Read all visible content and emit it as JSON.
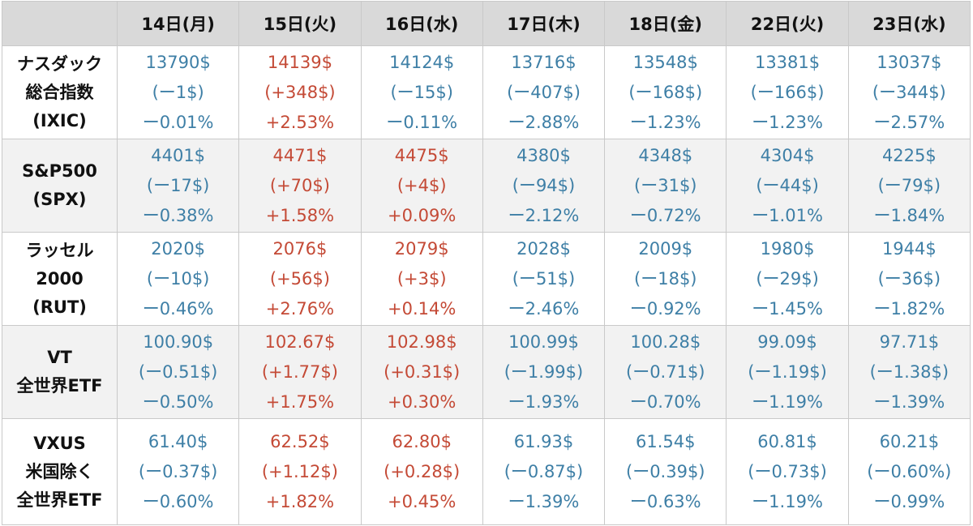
{
  "colors": {
    "negative": "#3e7fa6",
    "positive": "#c44a36",
    "header_bg": "#d9d9d9",
    "row_shade": "#f2f2f2"
  },
  "days": [
    "14日(月)",
    "15日(火)",
    "16日(水)",
    "17日(木)",
    "18日(金)",
    "22日(火)",
    "23日(水)"
  ],
  "rows": [
    {
      "label": [
        "ナスダック",
        "総合指数",
        "(IXIC)"
      ],
      "cells": [
        {
          "price": "13790$",
          "change": "(ー1$)",
          "pct": "ー0.01%",
          "dir": "neg"
        },
        {
          "price": "14139$",
          "change": "(+348$)",
          "pct": "+2.53%",
          "dir": "pos"
        },
        {
          "price": "14124$",
          "change": "(ー15$)",
          "pct": "ー0.11%",
          "dir": "neg"
        },
        {
          "price": "13716$",
          "change": "(ー407$)",
          "pct": "ー2.88%",
          "dir": "neg"
        },
        {
          "price": "13548$",
          "change": "(ー168$)",
          "pct": "ー1.23%",
          "dir": "neg"
        },
        {
          "price": "13381$",
          "change": "(ー166$)",
          "pct": "ー1.23%",
          "dir": "neg"
        },
        {
          "price": "13037$",
          "change": "(ー344$)",
          "pct": "ー2.57%",
          "dir": "neg"
        }
      ]
    },
    {
      "label": [
        "S&P500",
        "(SPX)"
      ],
      "cells": [
        {
          "price": "4401$",
          "change": "(ー17$)",
          "pct": "ー0.38%",
          "dir": "neg"
        },
        {
          "price": "4471$",
          "change": "(+70$)",
          "pct": "+1.58%",
          "dir": "pos"
        },
        {
          "price": "4475$",
          "change": "(+4$)",
          "pct": "+0.09%",
          "dir": "pos"
        },
        {
          "price": "4380$",
          "change": "(ー94$)",
          "pct": "ー2.12%",
          "dir": "neg"
        },
        {
          "price": "4348$",
          "change": "(ー31$)",
          "pct": "ー0.72%",
          "dir": "neg"
        },
        {
          "price": "4304$",
          "change": "(ー44$)",
          "pct": "ー1.01%",
          "dir": "neg"
        },
        {
          "price": "4225$",
          "change": "(ー79$)",
          "pct": "ー1.84%",
          "dir": "neg"
        }
      ]
    },
    {
      "label": [
        "ラッセル",
        "2000",
        "(RUT)"
      ],
      "cells": [
        {
          "price": "2020$",
          "change": "(ー10$)",
          "pct": "ー0.46%",
          "dir": "neg"
        },
        {
          "price": "2076$",
          "change": "(+56$)",
          "pct": "+2.76%",
          "dir": "pos"
        },
        {
          "price": "2079$",
          "change": "(+3$)",
          "pct": "+0.14%",
          "dir": "pos"
        },
        {
          "price": "2028$",
          "change": "(ー51$)",
          "pct": "ー2.46%",
          "dir": "neg"
        },
        {
          "price": "2009$",
          "change": "(ー18$)",
          "pct": "ー0.92%",
          "dir": "neg"
        },
        {
          "price": "1980$",
          "change": "(ー29$)",
          "pct": "ー1.45%",
          "dir": "neg"
        },
        {
          "price": "1944$",
          "change": "(ー36$)",
          "pct": "ー1.82%",
          "dir": "neg"
        }
      ]
    },
    {
      "label": [
        "VT",
        "全世界ETF"
      ],
      "cells": [
        {
          "price": "100.90$",
          "change": "(ー0.51$)",
          "pct": "ー0.50%",
          "dir": "neg"
        },
        {
          "price": "102.67$",
          "change": "(+1.77$)",
          "pct": "+1.75%",
          "dir": "pos"
        },
        {
          "price": "102.98$",
          "change": "(+0.31$)",
          "pct": "+0.30%",
          "dir": "pos"
        },
        {
          "price": "100.99$",
          "change": "(ー1.99$)",
          "pct": "ー1.93%",
          "dir": "neg"
        },
        {
          "price": "100.28$",
          "change": "(ー0.71$)",
          "pct": "ー0.70%",
          "dir": "neg"
        },
        {
          "price": "99.09$",
          "change": "(ー1.19$)",
          "pct": "ー1.19%",
          "dir": "neg"
        },
        {
          "price": "97.71$",
          "change": "(ー1.38$)",
          "pct": "ー1.39%",
          "dir": "neg"
        }
      ]
    },
    {
      "label": [
        "VXUS",
        "米国除く",
        "全世界ETF"
      ],
      "cells": [
        {
          "price": "61.40$",
          "change": "(ー0.37$)",
          "pct": "ー0.60%",
          "dir": "neg"
        },
        {
          "price": "62.52$",
          "change": "(+1.12$)",
          "pct": "+1.82%",
          "dir": "pos"
        },
        {
          "price": "62.80$",
          "change": "(+0.28$)",
          "pct": "+0.45%",
          "dir": "pos"
        },
        {
          "price": "61.93$",
          "change": "(ー0.87$)",
          "pct": "ー1.39%",
          "dir": "neg"
        },
        {
          "price": "61.54$",
          "change": "(ー0.39$)",
          "pct": "ー0.63%",
          "dir": "neg"
        },
        {
          "price": "60.81$",
          "change": "(ー0.73$)",
          "pct": "ー1.19%",
          "dir": "neg"
        },
        {
          "price": "60.21$",
          "change": "(ー0.60%)",
          "pct": "ー0.99%",
          "dir": "neg"
        }
      ]
    }
  ]
}
